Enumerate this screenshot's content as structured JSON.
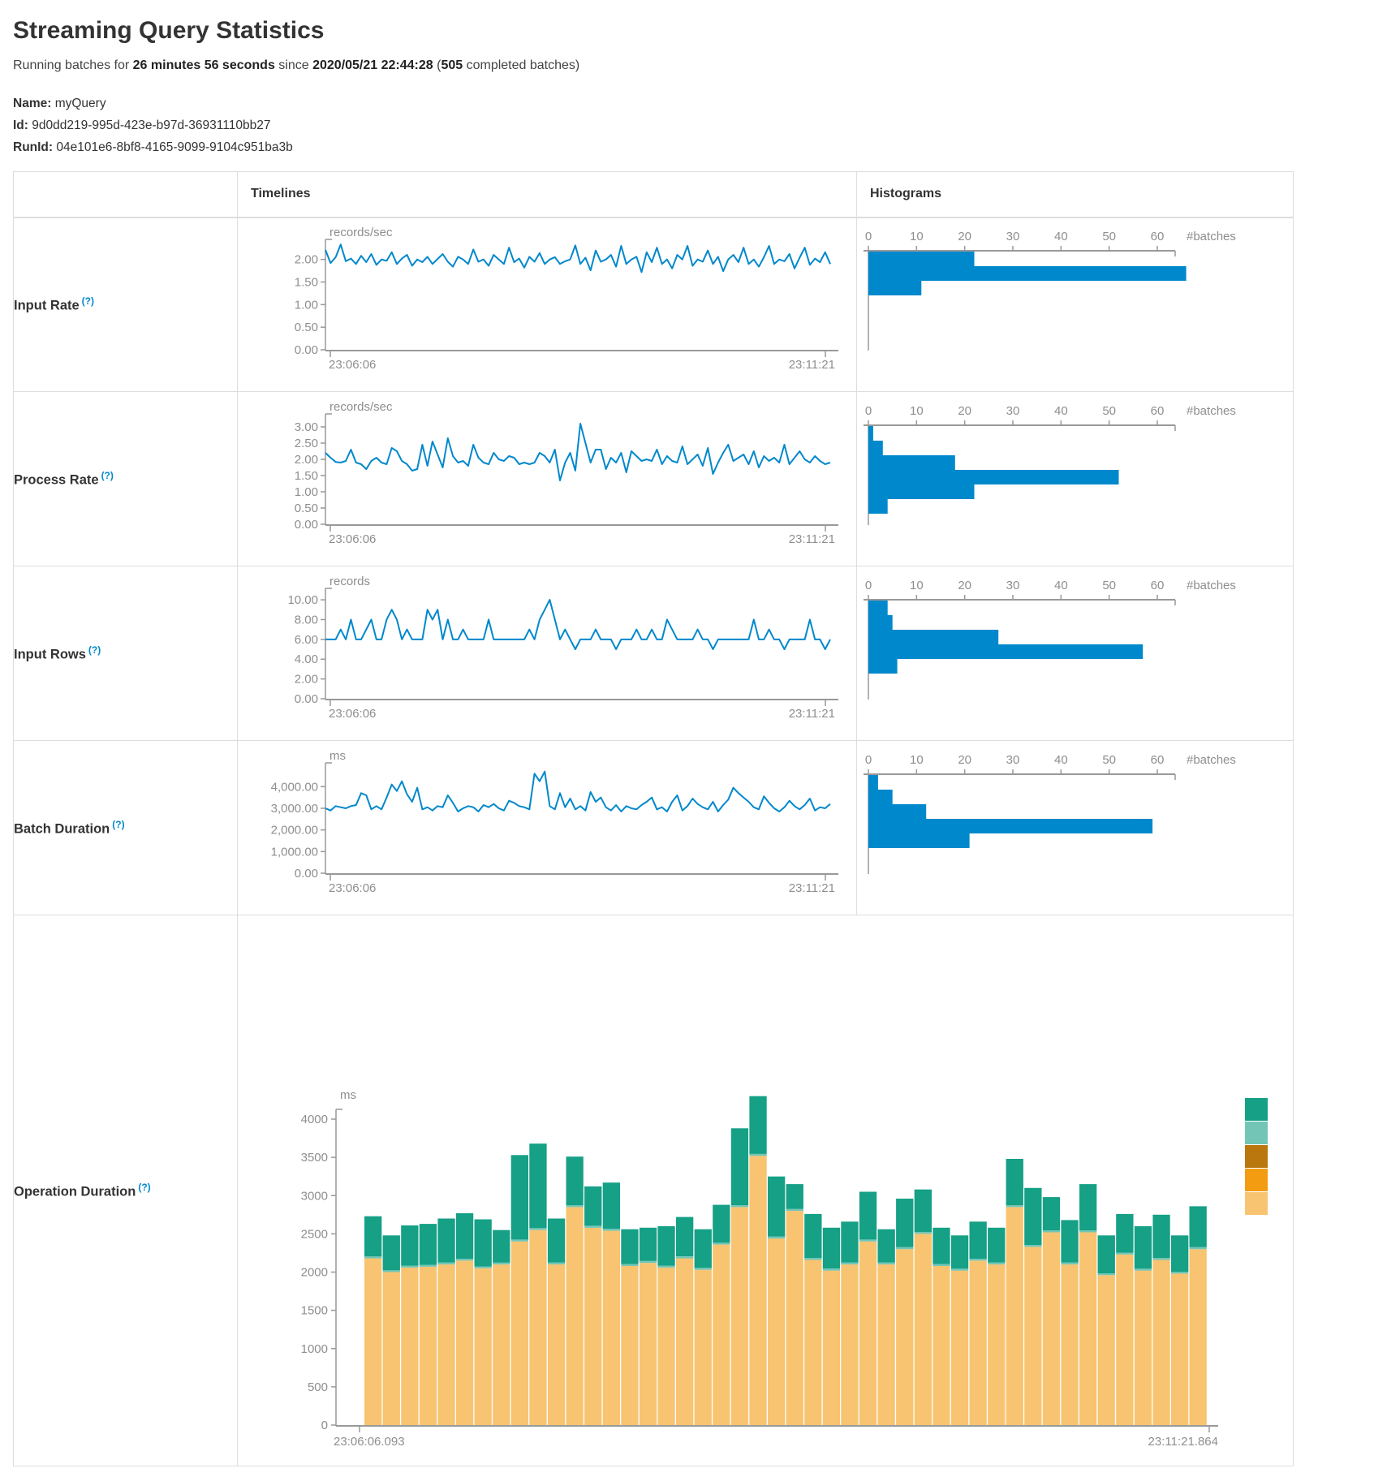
{
  "page": {
    "title": "Streaming Query Statistics",
    "subtitle": {
      "prefix": "Running batches for ",
      "duration": "26 minutes 56 seconds",
      "mid": " since ",
      "start_time": "2020/05/21 22:44:28",
      "paren_open": " (",
      "batch_count": "505",
      "paren_close": " completed batches)"
    },
    "query": {
      "name_label": "Name:",
      "name": "myQuery",
      "id_label": "Id:",
      "id": "9d0dd219-995d-423e-b97d-36931110bb27",
      "runid_label": "RunId:",
      "runid": "04e101e6-8bf8-4165-9099-9104c951ba3b"
    }
  },
  "table": {
    "headers": {
      "timelines": "Timelines",
      "histograms": "Histograms"
    },
    "rows": [
      {
        "label": "Input Rate",
        "help": "(?)"
      },
      {
        "label": "Process Rate",
        "help": "(?)"
      },
      {
        "label": "Input Rows",
        "help": "(?)"
      },
      {
        "label": "Batch Duration",
        "help": "(?)"
      },
      {
        "label": "Operation Duration",
        "help": "(?)"
      }
    ]
  },
  "colors": {
    "line_blue": "#0088cc",
    "hist_blue": "#0088cc",
    "axis_gray": "#999999",
    "label_gray": "#8e8e8e",
    "help_blue": "#0088cc",
    "op_stack": [
      "#F8C471",
      "#73C6B6",
      "#16A085"
    ],
    "op_legend": [
      "#16A085",
      "#73C6B6",
      "#B9770E",
      "#F39C12",
      "#F8C471"
    ]
  },
  "chart_data": {
    "input_rate": {
      "timeline": {
        "type": "line",
        "unit": "records/sec",
        "color": "#0088cc",
        "x_start": "23:06:06",
        "x_end": "23:11:21",
        "ymax": 2.3,
        "yticks": [
          {
            "v": 0,
            "label": "0.00"
          },
          {
            "v": 0.5,
            "label": "0.50"
          },
          {
            "v": 1,
            "label": "1.00"
          },
          {
            "v": 1.5,
            "label": "1.50"
          },
          {
            "v": 2,
            "label": "2.00"
          }
        ],
        "values": [
          2.21,
          1.92,
          2.05,
          2.33,
          1.96,
          2.02,
          1.9,
          2.08,
          1.94,
          2.12,
          1.88,
          2.0,
          1.97,
          2.16,
          1.9,
          2.02,
          2.1,
          1.86,
          2.0,
          1.94,
          2.06,
          1.9,
          2.01,
          2.12,
          1.95,
          1.84,
          2.06,
          2.0,
          1.9,
          2.22,
          1.95,
          2.0,
          1.86,
          2.1,
          2.0,
          1.9,
          2.26,
          1.94,
          2.02,
          1.82,
          2.06,
          1.95,
          2.14,
          1.9,
          2.0,
          2.05,
          1.9,
          1.96,
          2.0,
          2.31,
          1.9,
          2.04,
          1.76,
          2.2,
          1.95,
          2.0,
          2.1,
          1.84,
          2.3,
          1.9,
          2.0,
          2.06,
          1.72,
          2.16,
          1.94,
          2.26,
          1.9,
          2.0,
          1.8,
          2.1,
          2.0,
          2.3,
          1.86,
          2.0,
          1.95,
          2.2,
          1.9,
          2.06,
          1.74,
          2.0,
          2.1,
          1.94,
          2.26,
          1.9,
          2.0,
          1.84,
          2.05,
          2.3,
          1.9,
          2.0,
          1.96,
          2.12,
          1.8,
          2.04,
          2.26,
          1.88,
          2.02,
          1.94,
          2.16,
          1.9
        ]
      },
      "histogram": {
        "type": "bar-horizontal",
        "xlabel": "#batches",
        "color": "#0088cc",
        "xticks": [
          {
            "v": 0,
            "label": "0"
          },
          {
            "v": 10,
            "label": "10"
          },
          {
            "v": 20,
            "label": "20"
          },
          {
            "v": 30,
            "label": "30"
          },
          {
            "v": 40,
            "label": "40"
          },
          {
            "v": 50,
            "label": "50"
          },
          {
            "v": 60,
            "label": "60"
          }
        ],
        "values": [
          22,
          66,
          11
        ]
      }
    },
    "process_rate": {
      "timeline": {
        "type": "line",
        "unit": "records/sec",
        "color": "#0088cc",
        "x_start": "23:06:06",
        "x_end": "23:11:21",
        "ymax": 3.2,
        "yticks": [
          {
            "v": 0,
            "label": "0.00"
          },
          {
            "v": 0.5,
            "label": "0.50"
          },
          {
            "v": 1,
            "label": "1.00"
          },
          {
            "v": 1.5,
            "label": "1.50"
          },
          {
            "v": 2,
            "label": "2.00"
          },
          {
            "v": 2.5,
            "label": "2.50"
          },
          {
            "v": 3,
            "label": "3.00"
          }
        ],
        "values": [
          2.2,
          2.05,
          1.92,
          1.9,
          1.95,
          2.3,
          1.9,
          1.85,
          1.7,
          1.95,
          2.05,
          1.9,
          1.85,
          2.35,
          2.25,
          1.95,
          1.85,
          1.65,
          1.7,
          2.45,
          1.8,
          2.55,
          2.15,
          1.75,
          2.65,
          2.1,
          1.9,
          1.95,
          1.8,
          2.45,
          2.05,
          1.9,
          1.85,
          2.2,
          2.0,
          1.95,
          2.1,
          2.05,
          1.85,
          1.9,
          1.85,
          1.9,
          2.2,
          2.1,
          1.9,
          2.3,
          1.35,
          1.9,
          2.2,
          1.65,
          3.1,
          2.5,
          1.9,
          2.3,
          2.3,
          1.7,
          2.05,
          1.9,
          2.2,
          1.6,
          2.25,
          2.1,
          1.95,
          2.0,
          1.95,
          2.3,
          1.85,
          2.1,
          1.95,
          1.9,
          2.4,
          1.85,
          2.0,
          2.15,
          1.8,
          2.35,
          1.55,
          1.9,
          2.2,
          2.45,
          1.95,
          2.05,
          2.15,
          1.85,
          2.25,
          1.75,
          2.1,
          1.95,
          2.05,
          1.9,
          2.45,
          1.85,
          2.05,
          2.25,
          2.0,
          1.9,
          2.1,
          1.95,
          1.85,
          1.9
        ]
      },
      "histogram": {
        "type": "bar-horizontal",
        "xlabel": "#batches",
        "color": "#0088cc",
        "xticks": [
          {
            "v": 0,
            "label": "0"
          },
          {
            "v": 10,
            "label": "10"
          },
          {
            "v": 20,
            "label": "20"
          },
          {
            "v": 30,
            "label": "30"
          },
          {
            "v": 40,
            "label": "40"
          },
          {
            "v": 50,
            "label": "50"
          },
          {
            "v": 60,
            "label": "60"
          }
        ],
        "values": [
          1,
          3,
          18,
          52,
          22,
          4
        ]
      }
    },
    "input_rows": {
      "timeline": {
        "type": "line",
        "unit": "records",
        "color": "#0088cc",
        "x_start": "23:06:06",
        "x_end": "23:11:21",
        "ymax": 10.5,
        "yticks": [
          {
            "v": 0,
            "label": "0.00"
          },
          {
            "v": 2,
            "label": "2.00"
          },
          {
            "v": 4,
            "label": "4.00"
          },
          {
            "v": 6,
            "label": "6.00"
          },
          {
            "v": 8,
            "label": "8.00"
          },
          {
            "v": 10,
            "label": "10.00"
          }
        ],
        "values": [
          6,
          6,
          6,
          7,
          6,
          8,
          6,
          6,
          7,
          8,
          6,
          6,
          8,
          9,
          8,
          6,
          7,
          6,
          6,
          6,
          9,
          8,
          9,
          6,
          8,
          6,
          6,
          7,
          6,
          6,
          6,
          6,
          8,
          6,
          6,
          6,
          6,
          6,
          6,
          6,
          7,
          6,
          8,
          9,
          10,
          8,
          6,
          7,
          6,
          5,
          6,
          6,
          6,
          7,
          6,
          6,
          6,
          5,
          6,
          6,
          6,
          7,
          6,
          6,
          7,
          6,
          6,
          8,
          7,
          6,
          6,
          6,
          6,
          7,
          6,
          6,
          5,
          6,
          6,
          6,
          6,
          6,
          6,
          6,
          8,
          6,
          6,
          7,
          6,
          6,
          5,
          6,
          6,
          6,
          6,
          8,
          6,
          6,
          5,
          6
        ]
      },
      "histogram": {
        "type": "bar-horizontal",
        "xlabel": "#batches",
        "color": "#0088cc",
        "xticks": [
          {
            "v": 0,
            "label": "0"
          },
          {
            "v": 10,
            "label": "10"
          },
          {
            "v": 20,
            "label": "20"
          },
          {
            "v": 30,
            "label": "30"
          },
          {
            "v": 40,
            "label": "40"
          },
          {
            "v": 50,
            "label": "50"
          },
          {
            "v": 60,
            "label": "60"
          }
        ],
        "values": [
          4,
          5,
          27,
          57,
          6
        ]
      }
    },
    "batch_duration": {
      "timeline": {
        "type": "line",
        "unit": "ms",
        "color": "#0088cc",
        "x_start": "23:06:06",
        "x_end": "23:11:21",
        "ymax": 4800,
        "yticks": [
          {
            "v": 0,
            "label": "0.00"
          },
          {
            "v": 1000,
            "label": "1,000.00"
          },
          {
            "v": 2000,
            "label": "2,000.00"
          },
          {
            "v": 3000,
            "label": "3,000.00"
          },
          {
            "v": 4000,
            "label": "4,000.00"
          }
        ],
        "values": [
          3000,
          2900,
          3100,
          3050,
          3000,
          3100,
          3150,
          3700,
          3600,
          2950,
          3100,
          2950,
          3500,
          4100,
          3800,
          4250,
          3650,
          3300,
          3950,
          2950,
          3050,
          2900,
          3100,
          3050,
          3600,
          3250,
          2850,
          3000,
          3100,
          3050,
          2850,
          3150,
          3050,
          3200,
          3000,
          2900,
          3350,
          3250,
          3100,
          3050,
          2950,
          4600,
          4250,
          4700,
          3100,
          2950,
          3700,
          3050,
          3450,
          2950,
          3100,
          2900,
          3750,
          3300,
          3500,
          3050,
          2900,
          3150,
          2850,
          3100,
          3000,
          2950,
          3150,
          3300,
          3500,
          2950,
          3050,
          2850,
          3300,
          3600,
          2900,
          3100,
          3450,
          3200,
          3050,
          2950,
          3300,
          2850,
          3150,
          3400,
          3950,
          3700,
          3500,
          3300,
          3050,
          2950,
          3550,
          3250,
          3000,
          2850,
          3050,
          3350,
          3100,
          2950,
          3150,
          3450,
          2900,
          3050,
          3000,
          3200
        ]
      },
      "histogram": {
        "type": "bar-horizontal",
        "xlabel": "#batches",
        "color": "#0088cc",
        "xticks": [
          {
            "v": 0,
            "label": "0"
          },
          {
            "v": 10,
            "label": "10"
          },
          {
            "v": 20,
            "label": "20"
          },
          {
            "v": 30,
            "label": "30"
          },
          {
            "v": 40,
            "label": "40"
          },
          {
            "v": 50,
            "label": "50"
          },
          {
            "v": 60,
            "label": "60"
          }
        ],
        "values": [
          2,
          5,
          12,
          59,
          21
        ]
      }
    },
    "operation_duration": {
      "type": "stacked-bar",
      "unit": "ms",
      "x_start": "23:06:06.093",
      "x_end": "23:11:21.864",
      "ymax": 4500,
      "yticks": [
        {
          "v": 0,
          "label": "0"
        },
        {
          "v": 500,
          "label": "500"
        },
        {
          "v": 1000,
          "label": "1000"
        },
        {
          "v": 1500,
          "label": "1500"
        },
        {
          "v": 2000,
          "label": "2000"
        },
        {
          "v": 2500,
          "label": "2500"
        },
        {
          "v": 3000,
          "label": "3000"
        },
        {
          "v": 3500,
          "label": "3500"
        },
        {
          "v": 4000,
          "label": "4000"
        }
      ],
      "series": [
        {
          "color": "#F8C471",
          "values": [
            2180,
            2000,
            2060,
            2070,
            2100,
            2150,
            2050,
            2100,
            2400,
            2550,
            2100,
            2850,
            2580,
            2540,
            2080,
            2120,
            2060,
            2180,
            2030,
            2360,
            2850,
            3520,
            2440,
            2800,
            2160,
            2020,
            2100,
            2400,
            2100,
            2300,
            2500,
            2080,
            2020,
            2150,
            2100,
            2850,
            2330,
            2520,
            2100,
            2520,
            1960,
            2230,
            2020,
            2160,
            1980,
            2300
          ]
        },
        {
          "color": "#73C6B6",
          "values": [
            25,
            25,
            25,
            25,
            25,
            25,
            25,
            25,
            25,
            25,
            25,
            25,
            25,
            25,
            25,
            25,
            25,
            25,
            25,
            25,
            25,
            25,
            25,
            25,
            25,
            25,
            25,
            25,
            25,
            25,
            25,
            25,
            25,
            25,
            25,
            25,
            25,
            25,
            25,
            25,
            25,
            25,
            25,
            25,
            25,
            25
          ]
        },
        {
          "color": "#16A085",
          "values": [
            525,
            455,
            525,
            535,
            575,
            595,
            615,
            425,
            1105,
            1105,
            575,
            635,
            515,
            605,
            455,
            435,
            515,
            515,
            505,
            495,
            1005,
            755,
            785,
            325,
            575,
            535,
            535,
            625,
            435,
            635,
            555,
            475,
            435,
            485,
            455,
            605,
            745,
            435,
            555,
            605,
            495,
            505,
            555,
            565,
            475,
            535
          ]
        }
      ],
      "legend_colors": [
        "#16A085",
        "#73C6B6",
        "#B9770E",
        "#F39C12",
        "#F8C471"
      ]
    }
  }
}
